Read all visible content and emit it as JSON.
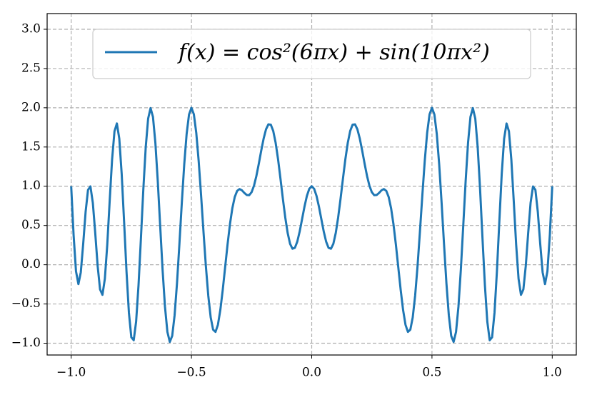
{
  "chart_data": {
    "type": "line",
    "x": [
      -1,
      -0.99,
      -0.98,
      -0.97,
      -0.96,
      -0.95,
      -0.94,
      -0.93,
      -0.92,
      -0.91,
      -0.9,
      -0.89,
      -0.88,
      -0.87,
      -0.86,
      -0.85,
      -0.84,
      -0.83,
      -0.82,
      -0.81,
      -0.8,
      -0.79,
      -0.78,
      -0.77,
      -0.76,
      -0.75,
      -0.74,
      -0.73,
      -0.72,
      -0.71,
      -0.7,
      -0.69,
      -0.68,
      -0.67,
      -0.66,
      -0.65,
      -0.64,
      -0.63,
      -0.62,
      -0.61,
      -0.6,
      -0.59,
      -0.58,
      -0.57,
      -0.56,
      -0.55,
      -0.54,
      -0.53,
      -0.52,
      -0.51,
      -0.5,
      -0.49,
      -0.48,
      -0.47,
      -0.46,
      -0.45,
      -0.44,
      -0.43,
      -0.42,
      -0.41,
      -0.4,
      -0.39,
      -0.38,
      -0.37,
      -0.36,
      -0.35,
      -0.34,
      -0.33,
      -0.32,
      -0.31,
      -0.3,
      -0.29,
      -0.28,
      -0.27,
      -0.26,
      -0.25,
      -0.24,
      -0.23,
      -0.22,
      -0.21,
      -0.2,
      -0.19,
      -0.18,
      -0.17,
      -0.16,
      -0.15,
      -0.14,
      -0.13,
      -0.12,
      -0.11,
      -0.1,
      -0.09,
      -0.08,
      -0.07,
      -0.06,
      -0.05,
      -0.04,
      -0.03,
      -0.02,
      -0.01,
      0,
      0.01,
      0.02,
      0.03,
      0.04,
      0.05,
      0.06,
      0.07,
      0.08,
      0.09,
      0.1,
      0.11,
      0.12,
      0.13,
      0.14,
      0.15,
      0.16,
      0.17,
      0.18,
      0.19,
      0.2,
      0.21,
      0.22,
      0.23,
      0.24,
      0.25,
      0.26,
      0.27,
      0.28,
      0.29,
      0.3,
      0.31,
      0.32,
      0.33,
      0.34,
      0.35,
      0.36,
      0.37,
      0.38,
      0.39,
      0.4,
      0.41,
      0.42,
      0.43,
      0.44,
      0.45,
      0.46,
      0.47,
      0.48,
      0.49,
      0.5,
      0.51,
      0.52,
      0.53,
      0.54,
      0.55,
      0.56,
      0.57,
      0.58,
      0.59,
      0.6,
      0.61,
      0.62,
      0.63,
      0.64,
      0.65,
      0.66,
      0.67,
      0.68,
      0.69,
      0.7,
      0.71,
      0.72,
      0.73,
      0.74,
      0.75,
      0.76,
      0.77,
      0.78,
      0.79,
      0.8,
      0.81,
      0.82,
      0.83,
      0.84,
      0.85,
      0.86,
      0.87,
      0.88,
      0.89,
      0.9,
      0.91,
      0.92,
      0.93,
      0.94,
      0.95,
      0.96,
      0.97,
      0.98,
      0.99,
      1
    ],
    "series": [
      {
        "name": "f(x) = cos²(6πx) + sin(10πx²)",
        "color": "#1f77b4",
        "values": [
          1.0,
          0.38,
          -0.083,
          -0.247,
          -0.096,
          0.267,
          0.674,
          0.954,
          0.998,
          0.788,
          0.405,
          -0.014,
          -0.314,
          -0.383,
          -0.179,
          0.255,
          0.809,
          1.338,
          1.7,
          1.8,
          1.606,
          1.156,
          0.548,
          -0.086,
          -0.612,
          -0.924,
          -0.962,
          -0.724,
          -0.259,
          0.34,
          0.964,
          1.501,
          1.863,
          1.996,
          1.884,
          1.554,
          1.065,
          0.497,
          -0.064,
          -0.536,
          -0.856,
          -0.983,
          -0.906,
          -0.643,
          -0.233,
          0.267,
          0.792,
          1.278,
          1.666,
          1.915,
          2.0,
          1.917,
          1.681,
          1.323,
          0.888,
          0.424,
          -0.018,
          -0.395,
          -0.671,
          -0.827,
          -0.856,
          -0.766,
          -0.578,
          -0.323,
          -0.034,
          0.255,
          0.514,
          0.72,
          0.863,
          0.941,
          0.964,
          0.948,
          0.915,
          0.888,
          0.886,
          0.924,
          1.007,
          1.131,
          1.286,
          1.452,
          1.606,
          1.725,
          1.789,
          1.784,
          1.705,
          1.554,
          1.346,
          1.1,
          0.843,
          0.603,
          0.405,
          0.267,
          0.204,
          0.215,
          0.294,
          0.424,
          0.582,
          0.741,
          0.877,
          0.968,
          1.0,
          0.968,
          0.877,
          0.741,
          0.582,
          0.424,
          0.294,
          0.215,
          0.204,
          0.267,
          0.405,
          0.603,
          0.843,
          1.1,
          1.346,
          1.554,
          1.705,
          1.784,
          1.789,
          1.725,
          1.606,
          1.452,
          1.286,
          1.131,
          1.007,
          0.924,
          0.886,
          0.888,
          0.915,
          0.948,
          0.964,
          0.941,
          0.863,
          0.72,
          0.514,
          0.255,
          -0.034,
          -0.323,
          -0.578,
          -0.766,
          -0.856,
          -0.827,
          -0.671,
          -0.395,
          -0.018,
          0.424,
          0.888,
          1.323,
          1.681,
          1.917,
          2.0,
          1.915,
          1.666,
          1.278,
          0.792,
          0.267,
          -0.233,
          -0.643,
          -0.906,
          -0.983,
          -0.856,
          -0.536,
          -0.064,
          0.497,
          1.065,
          1.554,
          1.884,
          1.996,
          1.863,
          1.501,
          0.964,
          0.34,
          -0.259,
          -0.724,
          -0.962,
          -0.924,
          -0.612,
          -0.086,
          0.548,
          1.156,
          1.606,
          1.8,
          1.7,
          1.338,
          0.809,
          0.255,
          -0.179,
          -0.383,
          -0.314,
          -0.014,
          0.405,
          0.788,
          0.998,
          0.954,
          0.674,
          0.267,
          -0.096,
          -0.247,
          -0.083,
          0.38,
          1.0
        ]
      }
    ],
    "xlim": [
      -1.1,
      1.1
    ],
    "ylim": [
      -1.15,
      3.2
    ],
    "xticks": [
      {
        "value": -1,
        "label": "−1.0"
      },
      {
        "value": -0.5,
        "label": "−0.5"
      },
      {
        "value": 0,
        "label": "0.0"
      },
      {
        "value": 0.5,
        "label": "0.5"
      },
      {
        "value": 1,
        "label": "1.0"
      }
    ],
    "yticks": [
      {
        "value": -1,
        "label": "−1.0"
      },
      {
        "value": -0.5,
        "label": "−0.5"
      },
      {
        "value": 0,
        "label": "0.0"
      },
      {
        "value": 0.5,
        "label": "0.5"
      },
      {
        "value": 1,
        "label": "1.0"
      },
      {
        "value": 1.5,
        "label": "1.5"
      },
      {
        "value": 2,
        "label": "2.0"
      },
      {
        "value": 2.5,
        "label": "2.5"
      },
      {
        "value": 3,
        "label": "3.0"
      }
    ],
    "grid": true,
    "legend": "upper center"
  }
}
